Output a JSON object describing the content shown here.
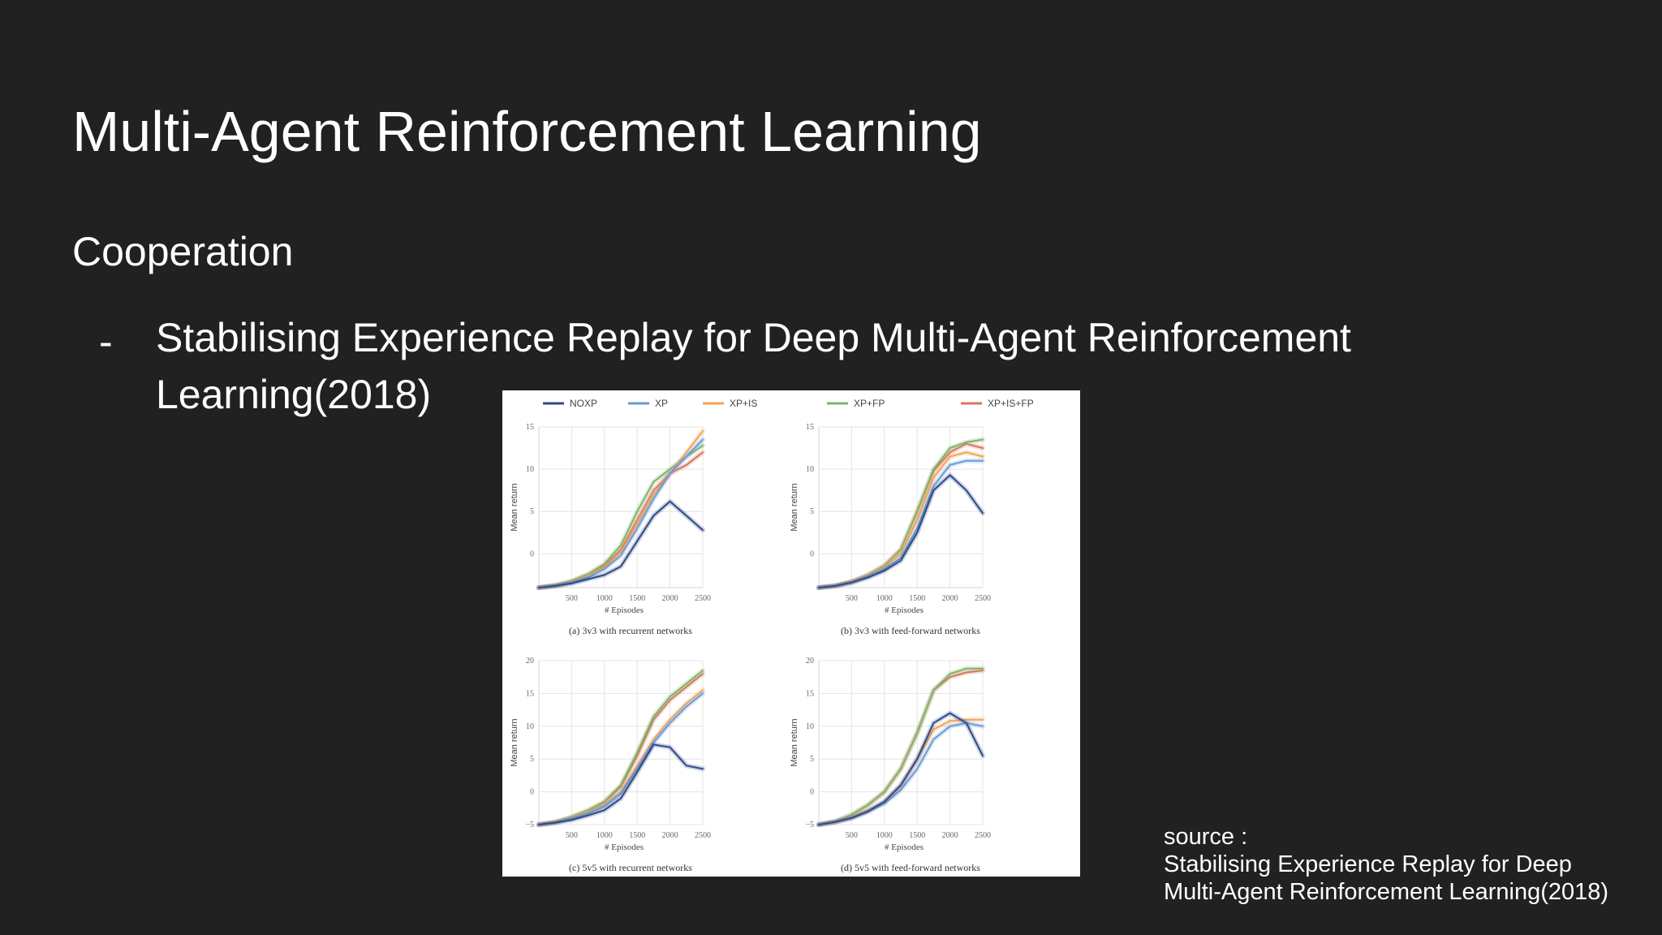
{
  "slide": {
    "title": "Multi-Agent Reinforcement Learning",
    "subtitle": "Cooperation",
    "bullet_dash": "-",
    "bullet_text": "Stabilising Experience Replay for Deep Multi-Agent Reinforcement Learning(2018)",
    "source_label": "source :",
    "source_line1": "Stabilising Experience Replay for Deep",
    "source_line2": "Multi-Agent Reinforcement Learning(2018)"
  },
  "colors": {
    "background": "#212121",
    "NOXP": "#2e4a87",
    "XP": "#6a9bd6",
    "XP+IS": "#f2a35a",
    "XP+FP": "#7fb36a",
    "XP+IS+FP": "#d8775a"
  },
  "legend": [
    "NOXP",
    "XP",
    "XP+IS",
    "XP+FP",
    "XP+IS+FP"
  ],
  "chart_data": [
    {
      "type": "line",
      "caption": "(a) 3v3 with recurrent networks",
      "xlabel": "# Episodes",
      "ylabel": "Mean return",
      "xlim": [
        0,
        2500
      ],
      "ylim": [
        -4,
        15
      ],
      "xticks": [
        500,
        1000,
        1500,
        2000,
        2500
      ],
      "yticks": [
        0,
        5,
        10,
        15
      ],
      "grid": true,
      "x": [
        0,
        250,
        500,
        750,
        1000,
        1250,
        1500,
        1750,
        2000,
        2250,
        2500
      ],
      "series": [
        {
          "name": "NOXP",
          "values": [
            -4,
            -3.8,
            -3.5,
            -3.0,
            -2.5,
            -1.5,
            1.5,
            4.5,
            6.2,
            4.5,
            2.8
          ]
        },
        {
          "name": "XP",
          "values": [
            -4,
            -3.8,
            -3.4,
            -2.8,
            -1.8,
            -0.2,
            3,
            6.5,
            9.5,
            11.5,
            13.5
          ]
        },
        {
          "name": "XP+IS",
          "values": [
            -4,
            -3.8,
            -3.3,
            -2.6,
            -1.6,
            0.2,
            3.5,
            7,
            9.5,
            12,
            14.5
          ]
        },
        {
          "name": "XP+FP",
          "values": [
            -4,
            -3.7,
            -3.2,
            -2.4,
            -1.2,
            1.0,
            5,
            8.5,
            10,
            11.5,
            12.8
          ]
        },
        {
          "name": "XP+IS+FP",
          "values": [
            -4,
            -3.8,
            -3.3,
            -2.5,
            -1.4,
            0.5,
            4,
            7.5,
            9.5,
            10.5,
            12
          ]
        }
      ]
    },
    {
      "type": "line",
      "caption": "(b) 3v3 with feed-forward networks",
      "xlabel": "# Episodes",
      "ylabel": "Mean return",
      "xlim": [
        0,
        2500
      ],
      "ylim": [
        -4,
        15
      ],
      "xticks": [
        500,
        1000,
        1500,
        2000,
        2500
      ],
      "yticks": [
        0,
        5,
        10,
        15
      ],
      "grid": true,
      "x": [
        0,
        250,
        500,
        750,
        1000,
        1250,
        1500,
        1750,
        2000,
        2250,
        2500
      ],
      "series": [
        {
          "name": "NOXP",
          "values": [
            -4,
            -3.8,
            -3.4,
            -2.8,
            -2,
            -0.8,
            2.5,
            7.5,
            9.3,
            7.5,
            4.8
          ]
        },
        {
          "name": "XP",
          "values": [
            -4,
            -3.8,
            -3.4,
            -2.7,
            -1.8,
            -0.5,
            3,
            8,
            10.5,
            11,
            11
          ]
        },
        {
          "name": "XP+IS",
          "values": [
            -4,
            -3.8,
            -3.3,
            -2.6,
            -1.6,
            0,
            4,
            9,
            11.5,
            12,
            11.5
          ]
        },
        {
          "name": "XP+FP",
          "values": [
            -4,
            -3.8,
            -3.3,
            -2.5,
            -1.4,
            0.5,
            5,
            10,
            12.5,
            13.2,
            13.5
          ]
        },
        {
          "name": "XP+IS+FP",
          "values": [
            -4,
            -3.8,
            -3.3,
            -2.5,
            -1.4,
            0.5,
            5,
            9.8,
            12,
            13,
            12.5
          ]
        }
      ]
    },
    {
      "type": "line",
      "caption": "(c) 5v5 with recurrent networks",
      "xlabel": "# Episodes",
      "ylabel": "Mean return",
      "xlim": [
        0,
        2500
      ],
      "ylim": [
        -5,
        20
      ],
      "xticks": [
        500,
        1000,
        1500,
        2000,
        2500
      ],
      "yticks": [
        -5,
        0,
        5,
        10,
        15,
        20
      ],
      "grid": true,
      "x": [
        0,
        250,
        500,
        750,
        1000,
        1250,
        1500,
        1750,
        2000,
        2250,
        2500
      ],
      "series": [
        {
          "name": "NOXP",
          "values": [
            -5,
            -4.7,
            -4.3,
            -3.6,
            -2.8,
            -1,
            3,
            7.2,
            6.8,
            4,
            3.5
          ]
        },
        {
          "name": "XP",
          "values": [
            -5,
            -4.7,
            -4.1,
            -3.3,
            -2.2,
            -0.3,
            3.5,
            7.5,
            10.5,
            13,
            15
          ]
        },
        {
          "name": "XP+IS",
          "values": [
            -5,
            -4.7,
            -4.0,
            -3.1,
            -2.0,
            0,
            4,
            8,
            11,
            13.5,
            15.5
          ]
        },
        {
          "name": "XP+FP",
          "values": [
            -5,
            -4.6,
            -3.8,
            -2.8,
            -1.5,
            1,
            6,
            11.5,
            14.5,
            16.5,
            18.5
          ]
        },
        {
          "name": "XP+IS+FP",
          "values": [
            -5,
            -4.6,
            -3.9,
            -2.9,
            -1.6,
            0.8,
            5.5,
            11,
            14,
            16,
            18
          ]
        }
      ]
    },
    {
      "type": "line",
      "caption": "(d) 5v5 with feed-forward networks",
      "xlabel": "# Episodes",
      "ylabel": "Mean return",
      "xlim": [
        0,
        2500
      ],
      "ylim": [
        -5,
        20
      ],
      "xticks": [
        500,
        1000,
        1500,
        2000,
        2500
      ],
      "yticks": [
        -5,
        0,
        5,
        10,
        15,
        20
      ],
      "grid": true,
      "x": [
        0,
        250,
        500,
        750,
        1000,
        1250,
        1500,
        1750,
        2000,
        2250,
        2500
      ],
      "series": [
        {
          "name": "NOXP",
          "values": [
            -5,
            -4.6,
            -4,
            -3,
            -1.5,
            1,
            5,
            10.5,
            12,
            10.5,
            5.5
          ]
        },
        {
          "name": "XP",
          "values": [
            -5,
            -4.6,
            -4,
            -3,
            -1.8,
            0.3,
            3.5,
            8,
            10,
            10.5,
            10
          ]
        },
        {
          "name": "XP+IS",
          "values": [
            -5,
            -4.6,
            -3.9,
            -2.8,
            -1.5,
            1,
            5,
            9.5,
            10.8,
            11,
            11
          ]
        },
        {
          "name": "XP+FP",
          "values": [
            -5,
            -4.5,
            -3.5,
            -2,
            0,
            3.5,
            9,
            15.5,
            18,
            18.8,
            18.8
          ]
        },
        {
          "name": "XP+IS+FP",
          "values": [
            -5,
            -4.5,
            -3.5,
            -2,
            0,
            3.5,
            9,
            15.5,
            17.5,
            18.2,
            18.5
          ]
        }
      ]
    }
  ]
}
